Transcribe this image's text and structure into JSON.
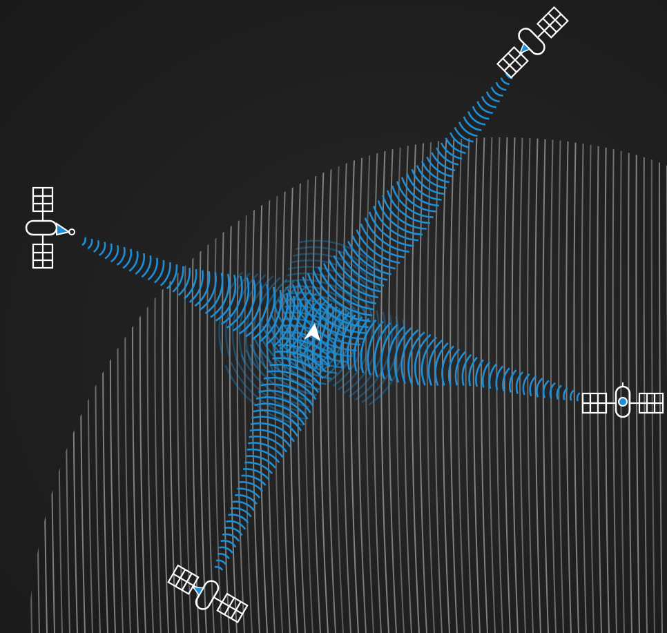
{
  "colors": {
    "background": "#1b1b1c",
    "globe_lines": "#8e8e8e",
    "signal": "#1e8fd6",
    "satellite_outline": "#ffffff",
    "receiver": "#ffffff"
  },
  "icons": {
    "satellite": "satellite-icon",
    "receiver": "navigation-arrow-icon",
    "globe": "globe-icon",
    "signal": "signal-wave-icon"
  },
  "scene": {
    "satellite_count": 4,
    "signals_converge_on": "receiver"
  }
}
